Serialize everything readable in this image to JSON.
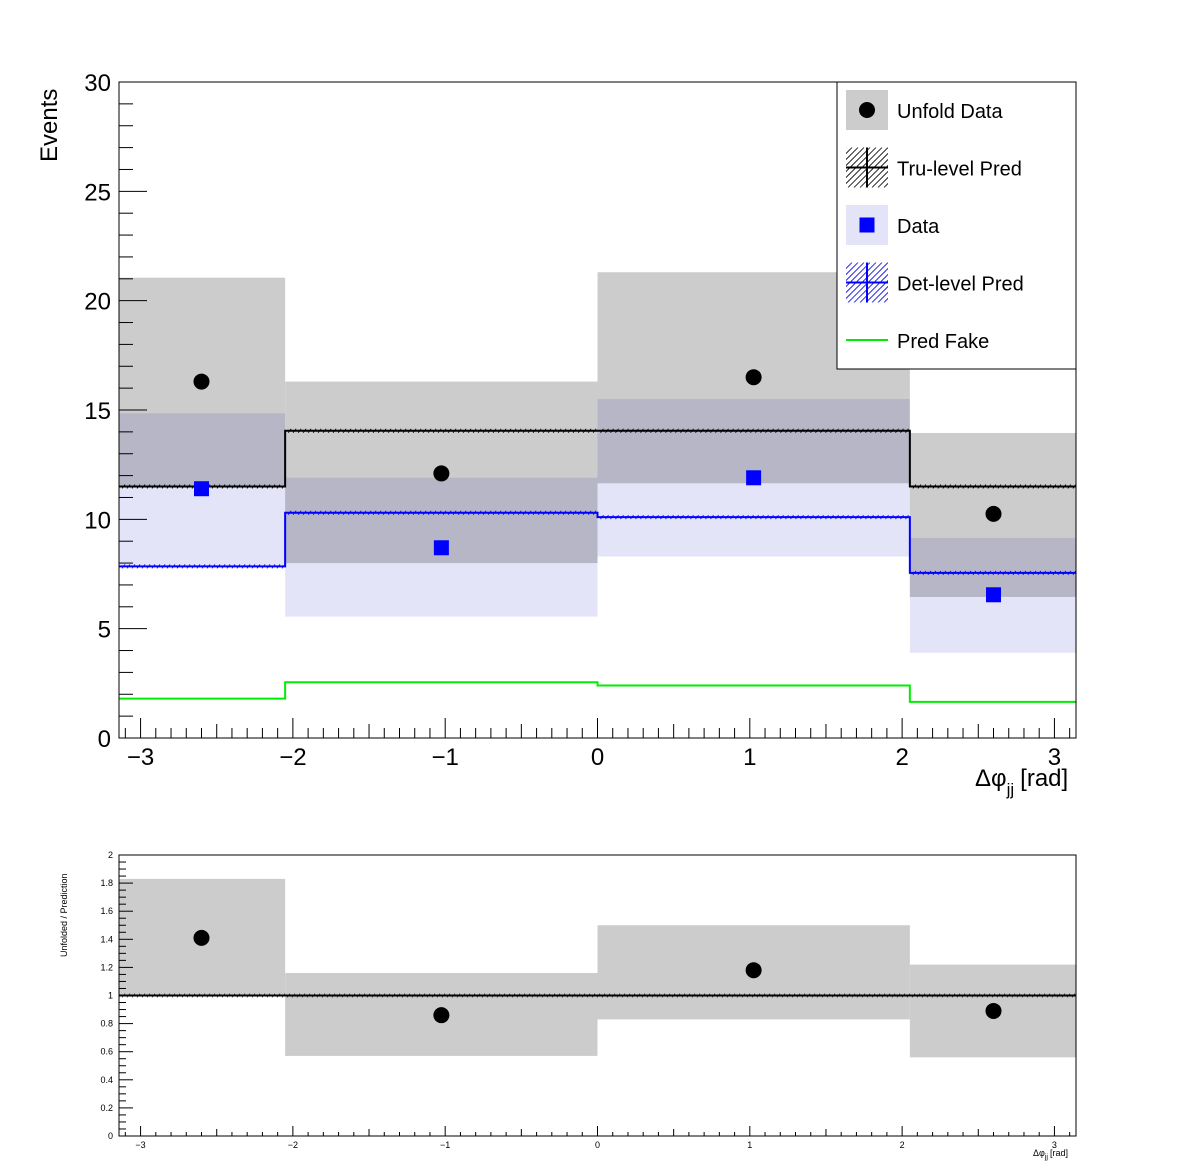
{
  "chart_data": [
    {
      "type": "step-histogram",
      "ylabel": "Events",
      "xlabel_main": "Δφ",
      "xlabel_sub": "jj",
      "xlabel_unit": "[rad]",
      "xlim": [
        -3.14159,
        3.14159
      ],
      "ylim": [
        0,
        30
      ],
      "x_ticks": [
        -3,
        -2,
        -1,
        0,
        1,
        2,
        3
      ],
      "x_tick_labels": [
        "−3",
        "−2",
        "−1",
        "0",
        "1",
        "2",
        "3"
      ],
      "y_ticks": [
        0,
        5,
        10,
        15,
        20,
        25,
        30
      ],
      "y_tick_labels": [
        "0",
        "5",
        "10",
        "15",
        "20",
        "25",
        "30"
      ],
      "bin_edges": [
        -3.14159,
        -2.0508,
        0.0,
        2.0508,
        3.14159
      ],
      "bin_centers": [
        -2.6,
        -1.025,
        1.025,
        2.6
      ],
      "series": [
        {
          "name": "Unfold Data",
          "kind": "markers",
          "marker": "circle",
          "color": "#000000",
          "values": [
            16.3,
            12.1,
            16.5,
            10.25
          ],
          "band_low": [
            11.5,
            8.0,
            11.65,
            6.45
          ],
          "band_high": [
            21.05,
            16.3,
            21.3,
            13.95
          ],
          "band_color": "#cccccc"
        },
        {
          "name": "Tru-level Pred",
          "kind": "step",
          "color": "#000000",
          "values": [
            11.5,
            14.05,
            14.05,
            11.5
          ]
        },
        {
          "name": "Data",
          "kind": "markers",
          "marker": "square",
          "color": "#0000ff",
          "values": [
            11.4,
            8.7,
            11.9,
            6.55
          ],
          "band_low": [
            7.9,
            5.55,
            8.3,
            3.9
          ],
          "band_high": [
            14.85,
            11.9,
            15.5,
            9.15
          ],
          "band_color": "#e4e4f9"
        },
        {
          "name": "Det-level Pred",
          "kind": "step",
          "color": "#0000ff",
          "values": [
            7.85,
            10.3,
            10.1,
            7.55
          ]
        },
        {
          "name": "Pred Fake",
          "kind": "step",
          "color": "#00ee00",
          "values": [
            1.8,
            2.55,
            2.4,
            1.65
          ]
        }
      ],
      "legend": [
        "Unfold Data",
        "Tru-level Pred",
        "Data",
        "Det-level Pred",
        "Pred Fake"
      ],
      "legend_position": "top-right"
    },
    {
      "type": "ratio",
      "ylabel": "Unfolded / Prediction",
      "xlabel_main": "Δφ",
      "xlabel_sub": "jj",
      "xlabel_unit": "[rad]",
      "xlim": [
        -3.14159,
        3.14159
      ],
      "ylim": [
        0,
        2
      ],
      "x_ticks": [
        -3,
        -2,
        -1,
        0,
        1,
        2,
        3
      ],
      "x_tick_labels": [
        "−3",
        "−2",
        "−1",
        "0",
        "1",
        "2",
        "3"
      ],
      "y_ticks": [
        0,
        0.2,
        0.4,
        0.6,
        0.8,
        1,
        1.2,
        1.4,
        1.6,
        1.8,
        2
      ],
      "y_tick_labels": [
        "0",
        "0.2",
        "0.4",
        "0.6",
        "0.8",
        "1",
        "1.2",
        "1.4",
        "1.6",
        "1.8",
        "2"
      ],
      "bin_edges": [
        -3.14159,
        -2.0508,
        0.0,
        2.0508,
        3.14159
      ],
      "bin_centers": [
        -2.6,
        -1.025,
        1.025,
        2.6
      ],
      "ratio_values": [
        1.41,
        0.86,
        1.18,
        0.89
      ],
      "band_low": [
        1.0,
        0.57,
        0.83,
        0.56
      ],
      "band_high": [
        1.83,
        1.16,
        1.5,
        1.22
      ],
      "reference_line": 1.0
    }
  ]
}
